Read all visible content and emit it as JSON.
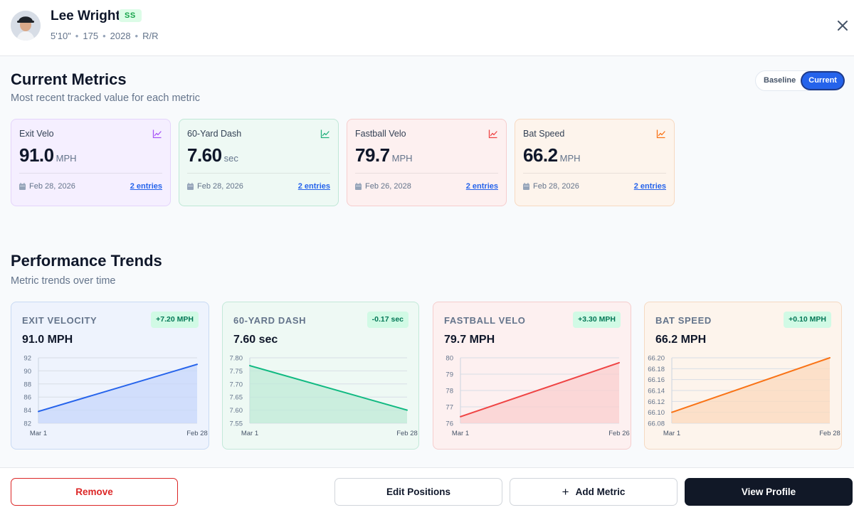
{
  "player": {
    "name": "Lee Wright",
    "position": "SS",
    "height": "5'10\"",
    "weight": "175",
    "class_year": "2028",
    "bats_throws": "R/R"
  },
  "current_metrics": {
    "title": "Current Metrics",
    "subtitle": "Most recent tracked value for each metric",
    "toggle": {
      "baseline": "Baseline",
      "current": "Current",
      "selected": "Current"
    },
    "cards": [
      {
        "label": "Exit Velo",
        "value": "91.0",
        "unit": "MPH",
        "date": "Feb 28, 2026",
        "entries": "2 entries",
        "accent": "#a855f7",
        "bg": "#f5efff",
        "border": "#e4d4fb"
      },
      {
        "label": "60-Yard Dash",
        "value": "7.60",
        "unit": "sec",
        "date": "Feb 28, 2026",
        "entries": "2 entries",
        "accent": "#22b07d",
        "bg": "#eef9f4",
        "border": "#bfe8d6"
      },
      {
        "label": "Fastball Velo",
        "value": "79.7",
        "unit": "MPH",
        "date": "Feb 26, 2028",
        "entries": "2 entries",
        "accent": "#ef4444",
        "bg": "#fdf0f0",
        "border": "#f6cdcd"
      },
      {
        "label": "Bat Speed",
        "value": "66.2",
        "unit": "MPH",
        "date": "Feb 28, 2026",
        "entries": "2 entries",
        "accent": "#f97316",
        "bg": "#fdf4ec",
        "border": "#f7d9c1"
      }
    ]
  },
  "trends": {
    "title": "Performance Trends",
    "subtitle": "Metric trends over time",
    "cards": [
      {
        "label": "EXIT VELOCITY",
        "value": "91.0 MPH",
        "delta": "+7.20 MPH",
        "delta_bg": "#d1fae5",
        "delta_color": "#047857",
        "line": "#2563eb",
        "fill": "#c7d7fb",
        "bg": "#eef3fd",
        "border": "#c8daf3"
      },
      {
        "label": "60-YARD DASH",
        "value": "7.60 sec",
        "delta": "-0.17 sec",
        "delta_bg": "#d1fae5",
        "delta_color": "#047857",
        "line": "#10b981",
        "fill": "#bfead7",
        "bg": "#eef9f4",
        "border": "#c3e9d9"
      },
      {
        "label": "FASTBALL VELO",
        "value": "79.7 MPH",
        "delta": "+3.30 MPH",
        "delta_bg": "#d1fae5",
        "delta_color": "#047857",
        "line": "#ef4444",
        "fill": "#f9cfcf",
        "bg": "#fdf0f0",
        "border": "#f5cdcd"
      },
      {
        "label": "BAT SPEED",
        "value": "66.2 MPH",
        "delta": "+0.10 MPH",
        "delta_bg": "#d1fae5",
        "delta_color": "#047857",
        "line": "#f97316",
        "fill": "#fbd9bd",
        "bg": "#fdf4ec",
        "border": "#f5d9c2"
      }
    ]
  },
  "chart_data": [
    {
      "type": "area",
      "title": "EXIT VELOCITY",
      "x": [
        "Mar 1",
        "Feb 28"
      ],
      "series": [
        {
          "values": [
            83.8,
            91.0
          ]
        }
      ],
      "ylim": [
        82,
        92
      ],
      "yticks": [
        82,
        84,
        86,
        88,
        90,
        92
      ],
      "ytick_labels": [
        "82",
        "84",
        "86",
        "88",
        "90",
        "92"
      ],
      "grid": true
    },
    {
      "type": "area",
      "title": "60-YARD DASH",
      "x": [
        "Mar 1",
        "Feb 28"
      ],
      "series": [
        {
          "values": [
            7.77,
            7.6
          ]
        }
      ],
      "ylim": [
        7.55,
        7.8
      ],
      "yticks": [
        7.55,
        7.6,
        7.65,
        7.7,
        7.75,
        7.8
      ],
      "ytick_labels": [
        "7.55",
        "7.60",
        "7.65",
        "7.70",
        "7.75",
        "7.80"
      ],
      "grid": true
    },
    {
      "type": "area",
      "title": "FASTBALL VELO",
      "x": [
        "Mar 1",
        "Feb 26"
      ],
      "series": [
        {
          "values": [
            76.4,
            79.7
          ]
        }
      ],
      "ylim": [
        76,
        80
      ],
      "yticks": [
        76,
        77,
        78,
        79,
        80
      ],
      "ytick_labels": [
        "76",
        "77",
        "78",
        "79",
        "80"
      ],
      "grid": true
    },
    {
      "type": "area",
      "title": "BAT SPEED",
      "x": [
        "Mar 1",
        "Feb 28"
      ],
      "series": [
        {
          "values": [
            66.1,
            66.2
          ]
        }
      ],
      "ylim": [
        66.08,
        66.2
      ],
      "yticks": [
        66.08,
        66.1,
        66.12,
        66.14,
        66.16,
        66.18,
        66.2
      ],
      "ytick_labels": [
        "66.08",
        "66.10",
        "66.12",
        "66.14",
        "66.16",
        "66.18",
        "66.20"
      ],
      "grid": true
    }
  ],
  "footer": {
    "remove": "Remove",
    "edit_positions": "Edit Positions",
    "add_metric": "Add Metric",
    "view_profile": "View Profile"
  },
  "icons": {
    "close": "close-icon",
    "trend": "trend-chart-icon",
    "calendar": "calendar-icon",
    "plus": "plus-icon"
  }
}
